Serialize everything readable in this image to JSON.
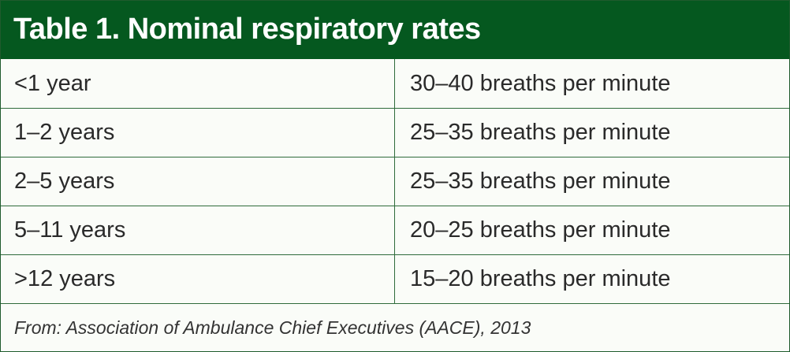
{
  "table": {
    "title": "Table 1. Nominal respiratory rates",
    "rows": [
      {
        "age": "<1 year",
        "rate": "30–40 breaths per minute"
      },
      {
        "age": "1–2 years",
        "rate": "25–35 breaths per minute"
      },
      {
        "age": "2–5 years",
        "rate": "25–35 breaths per minute"
      },
      {
        "age": "5–11 years",
        "rate": "20–25 breaths per minute"
      },
      {
        "age": ">12 years",
        "rate": "15–20 breaths per minute"
      }
    ],
    "source": "From: Association of Ambulance Chief Executives (AACE), 2013"
  },
  "colors": {
    "header_background": "#05581f",
    "header_text": "#ffffff",
    "rule_lines": "#2f6b3b"
  }
}
